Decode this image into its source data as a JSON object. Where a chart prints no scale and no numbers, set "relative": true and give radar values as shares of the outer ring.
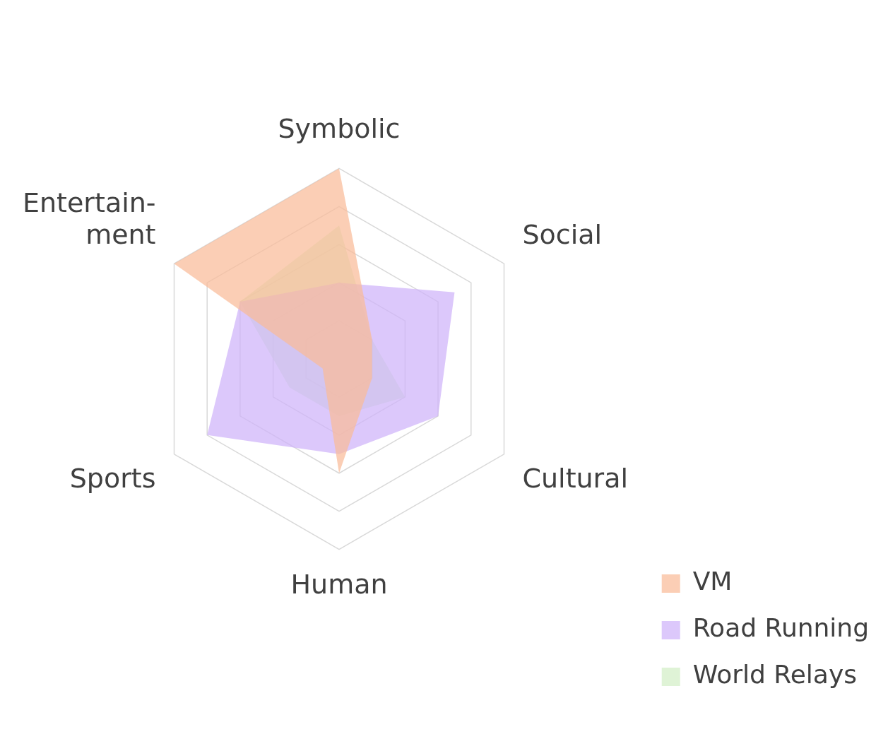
{
  "chart_data": {
    "type": "radar",
    "relative": true,
    "categories": [
      "Symbolic",
      "Social",
      "Cultural",
      "Human",
      "Sports",
      "Entertain-\nment"
    ],
    "series": [
      {
        "name": "VM",
        "color": "#f9bb98",
        "values": [
          1.0,
          0.2,
          0.2,
          0.6,
          0.1,
          1.0
        ]
      },
      {
        "name": "Road Running",
        "color": "#cfb3fa",
        "values": [
          0.4,
          0.7,
          0.6,
          0.5,
          0.8,
          0.6
        ]
      },
      {
        "name": "World Relays",
        "color": "#d3efc6",
        "values": [
          0.7,
          0.2,
          0.4,
          0.3,
          0.3,
          0.6
        ]
      }
    ],
    "legend": "bottom right"
  }
}
